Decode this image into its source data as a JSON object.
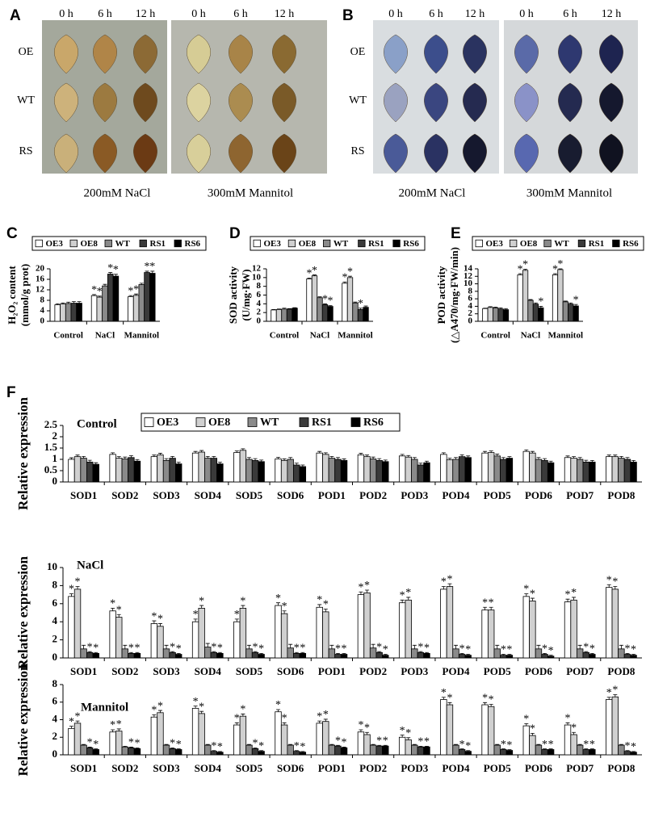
{
  "photo_panels": [
    {
      "label": "A",
      "time_labels": [
        "0 h",
        "6 h",
        "12 h",
        "0 h",
        "6 h",
        "12 h"
      ],
      "row_labels": [
        "OE",
        "WT",
        "RS"
      ],
      "captions": [
        "200mM NaCl",
        "300mM Mannitol"
      ]
    },
    {
      "label": "B",
      "time_labels": [
        "0 h",
        "6 h",
        "12 h",
        "0 h",
        "6 h",
        "12 h"
      ],
      "row_labels": [
        "OE",
        "WT",
        "RS"
      ],
      "captions": [
        "200mM NaCl",
        "300mM Mannitol"
      ]
    }
  ],
  "chart_data": [
    {
      "type": "bar",
      "label": "C",
      "ylabel": [
        "H₂O₂ content",
        "(mmol/g prot)"
      ],
      "categories": [
        "Control",
        "NaCl",
        "Mannitol"
      ],
      "ylim": [
        0,
        20
      ],
      "yticks": [
        0,
        4,
        8,
        12,
        16,
        20
      ],
      "series": [
        {
          "name": "OE3",
          "color": "#ffffff",
          "values": [
            6.3,
            9.8,
            9.4
          ],
          "error": [
            0.4,
            0.4,
            0.4
          ],
          "stars": [
            null,
            "*",
            "*"
          ]
        },
        {
          "name": "OE8",
          "color": "#d0d0d0",
          "values": [
            6.6,
            9.2,
            9.9
          ],
          "error": [
            0.4,
            0.4,
            0.5
          ],
          "stars": [
            null,
            "*",
            "*"
          ]
        },
        {
          "name": "WT",
          "color": "#8a8a8a",
          "values": [
            6.8,
            13.5,
            14.0
          ],
          "error": [
            0.5,
            0.6,
            0.5
          ]
        },
        {
          "name": "RS1",
          "color": "#3a3a3a",
          "values": [
            6.9,
            18.0,
            18.6
          ],
          "error": [
            0.6,
            0.6,
            0.5
          ],
          "stars": [
            null,
            "*",
            "*"
          ]
        },
        {
          "name": "RS6",
          "color": "#000000",
          "values": [
            6.9,
            17.2,
            18.3
          ],
          "error": [
            0.6,
            0.7,
            0.8
          ],
          "stars": [
            null,
            "*",
            "*"
          ]
        }
      ]
    },
    {
      "type": "bar",
      "label": "D",
      "ylabel": [
        "SOD activity",
        "(U/mg·FW)"
      ],
      "categories": [
        "Control",
        "NaCl",
        "Mannitol"
      ],
      "ylim": [
        0,
        12
      ],
      "yticks": [
        0,
        2,
        4,
        6,
        8,
        10,
        12
      ],
      "series": [
        {
          "name": "OE3",
          "color": "#ffffff",
          "values": [
            2.6,
            9.7,
            8.7
          ],
          "error": [
            0.1,
            0.2,
            0.3
          ],
          "stars": [
            null,
            "*",
            "*"
          ]
        },
        {
          "name": "OE8",
          "color": "#d0d0d0",
          "values": [
            2.7,
            10.4,
            10.0
          ],
          "error": [
            0.1,
            0.2,
            0.3
          ],
          "stars": [
            null,
            "*",
            "*"
          ]
        },
        {
          "name": "WT",
          "color": "#8a8a8a",
          "values": [
            2.8,
            5.4,
            4.2
          ],
          "error": [
            0.2,
            0.2,
            0.2
          ]
        },
        {
          "name": "RS1",
          "color": "#3a3a3a",
          "values": [
            2.8,
            3.8,
            2.7
          ],
          "error": [
            0.1,
            0.2,
            0.3
          ],
          "stars": [
            null,
            "*",
            "*"
          ]
        },
        {
          "name": "RS6",
          "color": "#000000",
          "values": [
            3.0,
            3.4,
            3.2
          ],
          "error": [
            0.1,
            0.2,
            0.3
          ],
          "stars": [
            null,
            "*",
            null
          ]
        }
      ]
    },
    {
      "type": "bar",
      "label": "E",
      "ylabel": [
        "POD activity",
        "(△A470/mg·FW/min)"
      ],
      "categories": [
        "Control",
        "NaCl",
        "Mannitol"
      ],
      "ylim": [
        0,
        14
      ],
      "yticks": [
        0,
        2,
        4,
        6,
        8,
        10,
        12,
        14
      ],
      "series": [
        {
          "name": "OE3",
          "color": "#ffffff",
          "values": [
            3.4,
            12.4,
            12.4
          ],
          "error": [
            0.1,
            0.3,
            0.3
          ],
          "stars": [
            null,
            "*",
            "*"
          ]
        },
        {
          "name": "OE8",
          "color": "#d0d0d0",
          "values": [
            3.7,
            13.6,
            13.8
          ],
          "error": [
            0.2,
            0.3,
            0.2
          ],
          "stars": [
            null,
            "*",
            "*"
          ]
        },
        {
          "name": "WT",
          "color": "#8a8a8a",
          "values": [
            3.6,
            5.6,
            5.2
          ],
          "error": [
            0.2,
            0.2,
            0.2
          ]
        },
        {
          "name": "RS1",
          "color": "#3a3a3a",
          "values": [
            3.3,
            4.6,
            4.6
          ],
          "error": [
            0.3,
            0.3,
            0.3
          ]
        },
        {
          "name": "RS6",
          "color": "#000000",
          "values": [
            3.1,
            3.6,
            4.1
          ],
          "error": [
            0.3,
            0.4,
            0.4
          ],
          "stars": [
            null,
            "*",
            "*"
          ]
        }
      ]
    },
    {
      "type": "bar",
      "label": "F",
      "title": "Control",
      "ylabel": "Relative expression",
      "categories": [
        "SOD1",
        "SOD2",
        "SOD3",
        "SOD4",
        "SOD5",
        "SOD6",
        "POD1",
        "POD2",
        "POD3",
        "POD4",
        "POD5",
        "POD6",
        "POD7",
        "POD8"
      ],
      "ylim": [
        0,
        2.5
      ],
      "yticks": [
        0,
        0.5,
        1,
        1.5,
        2,
        2.5
      ],
      "series": [
        {
          "name": "OE3",
          "color": "#ffffff",
          "values": [
            1.0,
            1.22,
            1.12,
            1.28,
            1.3,
            1.02,
            1.28,
            1.2,
            1.15,
            1.22,
            1.28,
            1.35,
            1.08,
            1.12
          ],
          "error": 0.07
        },
        {
          "name": "OE8",
          "color": "#d0d0d0",
          "values": [
            1.12,
            1.05,
            1.2,
            1.32,
            1.4,
            0.95,
            1.22,
            1.12,
            1.1,
            0.98,
            1.3,
            1.28,
            1.05,
            1.12
          ],
          "error": 0.07
        },
        {
          "name": "WT",
          "color": "#8a8a8a",
          "values": [
            1.05,
            1.02,
            0.95,
            1.05,
            1.0,
            1.0,
            1.05,
            1.02,
            1.0,
            1.0,
            1.15,
            1.0,
            1.0,
            1.05
          ],
          "error": 0.08
        },
        {
          "name": "RS1",
          "color": "#3a3a3a",
          "values": [
            0.88,
            1.08,
            1.05,
            1.05,
            0.95,
            0.75,
            1.0,
            0.95,
            0.75,
            1.12,
            1.0,
            0.95,
            0.88,
            1.0
          ],
          "error": 0.08
        },
        {
          "name": "RS6",
          "color": "#000000",
          "values": [
            0.78,
            0.92,
            0.8,
            0.8,
            0.9,
            0.68,
            0.95,
            0.9,
            0.85,
            1.08,
            1.05,
            0.85,
            0.88,
            0.88
          ],
          "error": 0.07
        }
      ]
    },
    {
      "type": "bar",
      "title": "NaCl",
      "ylabel": "Relative expression",
      "categories": [
        "SOD1",
        "SOD2",
        "SOD3",
        "SOD4",
        "SOD5",
        "SOD6",
        "POD1",
        "POD2",
        "POD3",
        "POD4",
        "POD5",
        "POD6",
        "POD7",
        "POD8"
      ],
      "ylim": [
        0,
        10
      ],
      "yticks": [
        0,
        2,
        4,
        6,
        8,
        10
      ],
      "series": [
        {
          "color": "#ffffff",
          "values": [
            6.8,
            5.2,
            3.8,
            4.0,
            4.0,
            5.8,
            5.6,
            7.0,
            6.1,
            7.6,
            5.3,
            6.8,
            6.2,
            7.8
          ],
          "error": 0.3,
          "stars": "*"
        },
        {
          "color": "#d0d0d0",
          "values": [
            7.6,
            4.5,
            3.5,
            5.5,
            5.5,
            4.9,
            5.1,
            7.2,
            6.4,
            7.9,
            5.3,
            6.3,
            6.4,
            7.6
          ],
          "error": 0.3,
          "stars": "*"
        },
        {
          "color": "#8a8a8a",
          "values": [
            1.0,
            1.0,
            1.0,
            1.2,
            1.0,
            1.1,
            1.0,
            1.1,
            1.0,
            1.0,
            1.0,
            1.0,
            1.0,
            1.0
          ],
          "error": 0.4
        },
        {
          "color": "#3a3a3a",
          "values": [
            0.6,
            0.5,
            0.6,
            0.6,
            0.6,
            0.5,
            0.4,
            0.6,
            0.6,
            0.4,
            0.3,
            0.4,
            0.6,
            0.4
          ],
          "error": 0.1,
          "stars": "*"
        },
        {
          "color": "#000000",
          "values": [
            0.5,
            0.5,
            0.4,
            0.5,
            0.4,
            0.5,
            0.4,
            0.3,
            0.5,
            0.3,
            0.3,
            0.2,
            0.4,
            0.3
          ],
          "error": 0.1,
          "stars": "*"
        }
      ]
    },
    {
      "type": "bar",
      "title": "Mannitol",
      "ylabel": "Relative expression",
      "categories": [
        "SOD1",
        "SOD2",
        "SOD3",
        "SOD4",
        "SOD5",
        "SOD6",
        "POD1",
        "POD2",
        "POD3",
        "POD4",
        "POD5",
        "POD6",
        "POD7",
        "POD8"
      ],
      "ylim": [
        0,
        8
      ],
      "yticks": [
        0,
        2,
        4,
        6,
        8
      ],
      "series": [
        {
          "color": "#ffffff",
          "values": [
            3.0,
            2.6,
            4.3,
            5.3,
            3.4,
            4.9,
            3.6,
            2.6,
            2.0,
            6.3,
            5.7,
            3.3,
            3.4,
            6.3
          ],
          "error": 0.25,
          "stars": "*"
        },
        {
          "color": "#d0d0d0",
          "values": [
            3.6,
            2.7,
            4.8,
            4.7,
            4.4,
            3.4,
            3.8,
            2.3,
            1.7,
            5.7,
            5.5,
            2.2,
            2.3,
            6.6
          ],
          "error": 0.25,
          "stars": "*"
        },
        {
          "color": "#8a8a8a",
          "values": [
            1.1,
            0.9,
            1.1,
            1.1,
            1.1,
            1.1,
            1.1,
            1.1,
            1.1,
            1.1,
            1.1,
            1.1,
            1.1,
            1.1
          ],
          "error": 0.08
        },
        {
          "color": "#3a3a3a",
          "values": [
            0.8,
            0.8,
            0.7,
            0.4,
            0.7,
            0.4,
            1.0,
            1.0,
            0.9,
            0.6,
            0.6,
            0.6,
            0.6,
            0.4
          ],
          "error": 0.08,
          "stars": "*"
        },
        {
          "color": "#000000",
          "values": [
            0.6,
            0.7,
            0.6,
            0.3,
            0.4,
            0.3,
            0.8,
            1.0,
            0.9,
            0.4,
            0.5,
            0.6,
            0.6,
            0.3
          ],
          "error": 0.08,
          "stars": "*"
        }
      ]
    }
  ]
}
